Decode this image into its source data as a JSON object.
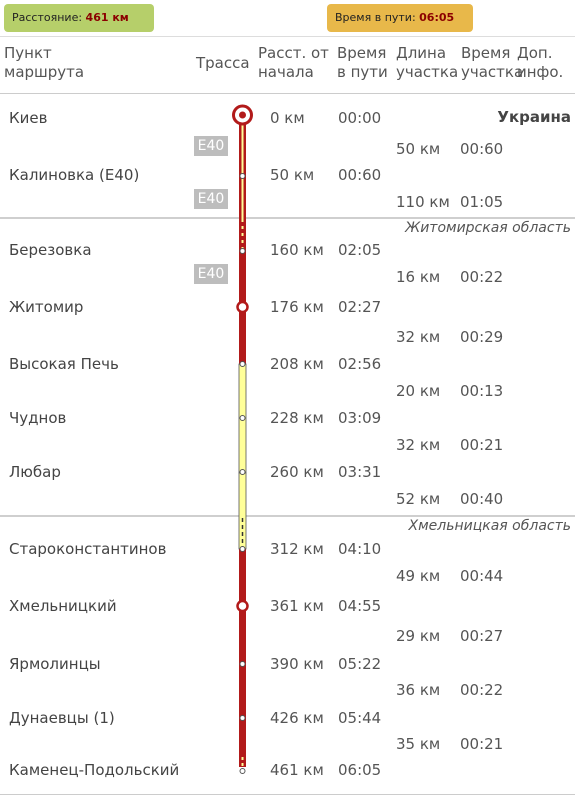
{
  "summary": {
    "distance_label": "Расстояние:",
    "distance_value": "461 км",
    "time_label": "Время в пути:",
    "time_value": "06:05"
  },
  "headers": {
    "point": "Пункт маршрута",
    "route": "Трасса",
    "dist": "Расст. от начала",
    "time": "Время в пути",
    "seg_len": "Длина участка",
    "seg_time": "Время участка",
    "extra": "Доп. инфо."
  },
  "country": "Украина",
  "regions": [
    "Житомирская область",
    "Хмельницкая область"
  ],
  "road_label": "E40",
  "stops": [
    {
      "name": "Киев",
      "dist": "0 км",
      "time": "00:00",
      "marker": "major"
    },
    {
      "name": "Калиновка (Е40)",
      "dist": "50 км",
      "time": "00:60",
      "marker": "minor"
    },
    {
      "name": "Березовка",
      "dist": "160 км",
      "time": "02:05",
      "marker": "minor"
    },
    {
      "name": "Житомир",
      "dist": "176 км",
      "time": "02:27",
      "marker": "city"
    },
    {
      "name": "Высокая Печь",
      "dist": "208 км",
      "time": "02:56",
      "marker": "minor"
    },
    {
      "name": "Чуднов",
      "dist": "228 км",
      "time": "03:09",
      "marker": "minor"
    },
    {
      "name": "Любар",
      "dist": "260 км",
      "time": "03:31",
      "marker": "minor"
    },
    {
      "name": "Староконстантинов",
      "dist": "312 км",
      "time": "04:10",
      "marker": "minor"
    },
    {
      "name": "Хмельницкий",
      "dist": "361 км",
      "time": "04:55",
      "marker": "city"
    },
    {
      "name": "Ярмолинцы",
      "dist": "390 км",
      "time": "05:22",
      "marker": "minor"
    },
    {
      "name": "Дунаевцы (1)",
      "dist": "426 км",
      "time": "05:44",
      "marker": "minor"
    },
    {
      "name": "Каменец-Подольский",
      "dist": "461 км",
      "time": "06:05",
      "marker": "minor"
    }
  ],
  "segments": [
    {
      "len": "50 км",
      "time": "00:60",
      "road": "E40"
    },
    {
      "len": "110 км",
      "time": "01:05",
      "road": "E40"
    },
    {
      "len": "16 км",
      "time": "00:22",
      "road": "E40"
    },
    {
      "len": "32 км",
      "time": "00:29",
      "road": ""
    },
    {
      "len": "20 км",
      "time": "00:13",
      "road": ""
    },
    {
      "len": "32 км",
      "time": "00:21",
      "road": ""
    },
    {
      "len": "52 км",
      "time": "00:40",
      "road": ""
    },
    {
      "len": "49 км",
      "time": "00:44",
      "road": ""
    },
    {
      "len": "29 км",
      "time": "00:27",
      "road": ""
    },
    {
      "len": "36 км",
      "time": "00:22",
      "road": ""
    },
    {
      "len": "35 км",
      "time": "00:21",
      "road": ""
    }
  ],
  "colors": {
    "major_road": "#b21a1a",
    "regional_road": "#ffff99",
    "separator": "#cfcfcf",
    "badge_green": "#b6cf6a",
    "badge_orange": "#e8b84a"
  }
}
